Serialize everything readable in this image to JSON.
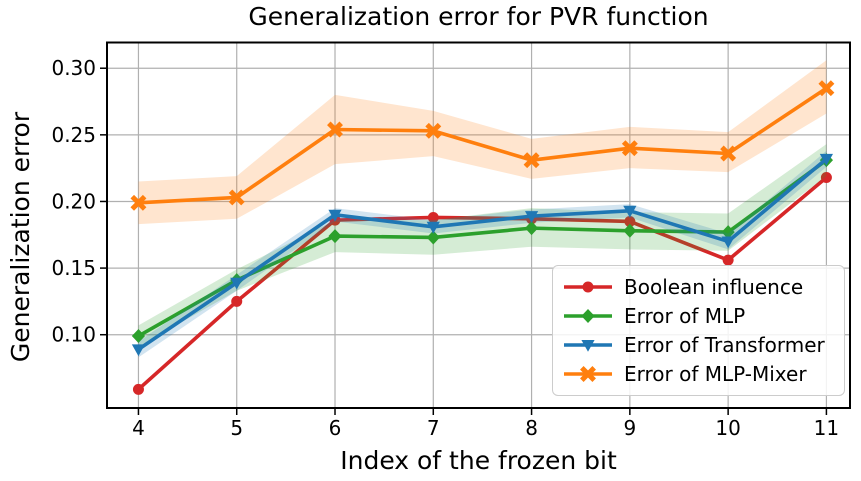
{
  "chart_data": {
    "type": "line",
    "title": "Generalization error for PVR function",
    "xlabel": "Index of the frozen bit",
    "ylabel": "Generalization error",
    "x": [
      4,
      5,
      6,
      7,
      8,
      9,
      10,
      11
    ],
    "xticks": [
      4,
      5,
      6,
      7,
      8,
      9,
      10,
      11
    ],
    "yticks": [
      0.1,
      0.15,
      0.2,
      0.25,
      0.3
    ],
    "xlim": [
      3.68,
      11.24
    ],
    "ylim": [
      0.045,
      0.3193
    ],
    "grid": true,
    "grid_color": "#b0b0b0",
    "legend_position": "lower right",
    "series": [
      {
        "name": "Boolean influence",
        "color": "#d62728",
        "marker": "circle",
        "values": [
          0.059,
          0.125,
          0.186,
          0.188,
          0.187,
          0.185,
          0.156,
          0.218
        ]
      },
      {
        "name": "Error of MLP",
        "color": "#2ca02c",
        "marker": "diamond",
        "values": [
          0.099,
          0.141,
          0.174,
          0.173,
          0.18,
          0.178,
          0.177,
          0.231
        ],
        "band_lower": [
          0.091,
          0.133,
          0.162,
          0.16,
          0.166,
          0.164,
          0.163,
          0.219
        ],
        "band_upper": [
          0.107,
          0.149,
          0.186,
          0.186,
          0.195,
          0.192,
          0.191,
          0.243
        ]
      },
      {
        "name": "Error of Transformer",
        "color": "#1f77b4",
        "marker": "triangle-down",
        "values": [
          0.089,
          0.139,
          0.19,
          0.181,
          0.189,
          0.193,
          0.17,
          0.232
        ],
        "band_lower": [
          0.083,
          0.133,
          0.185,
          0.176,
          0.184,
          0.188,
          0.164,
          0.226
        ],
        "band_upper": [
          0.095,
          0.145,
          0.195,
          0.186,
          0.194,
          0.198,
          0.176,
          0.238
        ]
      },
      {
        "name": "Error of MLP-Mixer",
        "color": "#ff7f0e",
        "marker": "x-filled",
        "values": [
          0.199,
          0.203,
          0.254,
          0.253,
          0.231,
          0.24,
          0.236,
          0.285
        ],
        "band_lower": [
          0.183,
          0.187,
          0.228,
          0.234,
          0.217,
          0.225,
          0.222,
          0.266
        ],
        "band_upper": [
          0.215,
          0.219,
          0.28,
          0.268,
          0.247,
          0.256,
          0.252,
          0.306
        ]
      }
    ]
  }
}
